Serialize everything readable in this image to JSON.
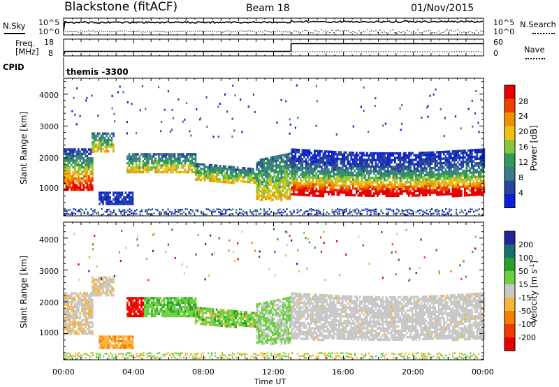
{
  "header": {
    "station": "Blackstone (fitACF)",
    "beam": "Beam 18",
    "date": "01/Nov/2015"
  },
  "side_labels": {
    "nsky": "N.Sky",
    "nsearch": "N.Search",
    "freq_line1": "Freq.",
    "freq_line2": "[MHz]",
    "nave": "Nave",
    "cpid": "CPID",
    "cpid_value": "themis -3300"
  },
  "noise_panel": {
    "left_ticks": [
      "10^5",
      "10^0"
    ],
    "right_ticks": [
      "10^5",
      "10^0"
    ]
  },
  "freq_panel": {
    "left_ticks": [
      "18",
      "8"
    ],
    "right_ticks": [
      "60",
      "0"
    ],
    "freq_before_mhz": 10.5,
    "freq_after_mhz": 15.5,
    "switch_time_h": 13.0
  },
  "x_axis": {
    "label": "Time UT",
    "tick_labels": [
      "00:00",
      "04:00",
      "08:00",
      "12:00",
      "16:00",
      "20:00",
      "00:00"
    ],
    "range_h": [
      0,
      24
    ]
  },
  "y_axis": {
    "label": "Slant Range [km]",
    "tick_labels": [
      "1000",
      "2000",
      "3000",
      "4000"
    ],
    "range_km": [
      180,
      4500
    ]
  },
  "colors": {
    "power": [
      "#0b1fd6",
      "#27469a",
      "#3c7a86",
      "#2f9a5a",
      "#8bc43e",
      "#f2c014",
      "#f28f00",
      "#f04000",
      "#e60000"
    ],
    "velocity": [
      "#e80000",
      "#f03c00",
      "#f57e00",
      "#f9b43c",
      "#c8c8c8",
      "#6cd040",
      "#2aa02a",
      "#1c6e6e",
      "#23259e"
    ]
  },
  "chart_data": [
    {
      "type": "heatmap",
      "name": "power",
      "colorbar_label": "Power [dB]",
      "colorbar_ticks": [
        "4",
        "8",
        "12",
        "16",
        "20",
        "24",
        "28"
      ],
      "bands": [
        {
          "t0": 0.0,
          "t1": 1.6,
          "r0": 980,
          "r1": 2300
        },
        {
          "t0": 1.6,
          "t1": 2.8,
          "r0": 2200,
          "r1": 2800
        },
        {
          "t0": 2.0,
          "t1": 3.9,
          "r0": 580,
          "r1": 940
        },
        {
          "t0": 3.6,
          "t1": 7.5,
          "r0": 1550,
          "r1": 2150
        },
        {
          "t0": 7.5,
          "t1": 11.0,
          "r0": 1300,
          "r1": 1850
        },
        {
          "t0": 11.0,
          "t1": 12.9,
          "r0": 700,
          "r1": 1950
        },
        {
          "t0": 13.0,
          "t1": 24.0,
          "r0": 850,
          "r1": 2300
        }
      ]
    },
    {
      "type": "heatmap",
      "name": "velocity",
      "colorbar_label": "Velocity [m s^-1]",
      "colorbar_ticks": [
        "200",
        "100",
        "50",
        "15",
        "-15",
        "-50",
        "-100",
        "-200"
      ],
      "bands": [
        {
          "t0": 0.0,
          "t1": 1.6,
          "r0": 980,
          "r1": 2300
        },
        {
          "t0": 1.6,
          "t1": 2.8,
          "r0": 2200,
          "r1": 2800
        },
        {
          "t0": 2.0,
          "t1": 3.9,
          "r0": 580,
          "r1": 940
        },
        {
          "t0": 3.6,
          "t1": 7.5,
          "r0": 1550,
          "r1": 2150
        },
        {
          "t0": 7.5,
          "t1": 11.0,
          "r0": 1300,
          "r1": 1850
        },
        {
          "t0": 11.0,
          "t1": 12.9,
          "r0": 700,
          "r1": 1950
        },
        {
          "t0": 13.0,
          "t1": 24.0,
          "r0": 850,
          "r1": 2300
        }
      ]
    }
  ]
}
